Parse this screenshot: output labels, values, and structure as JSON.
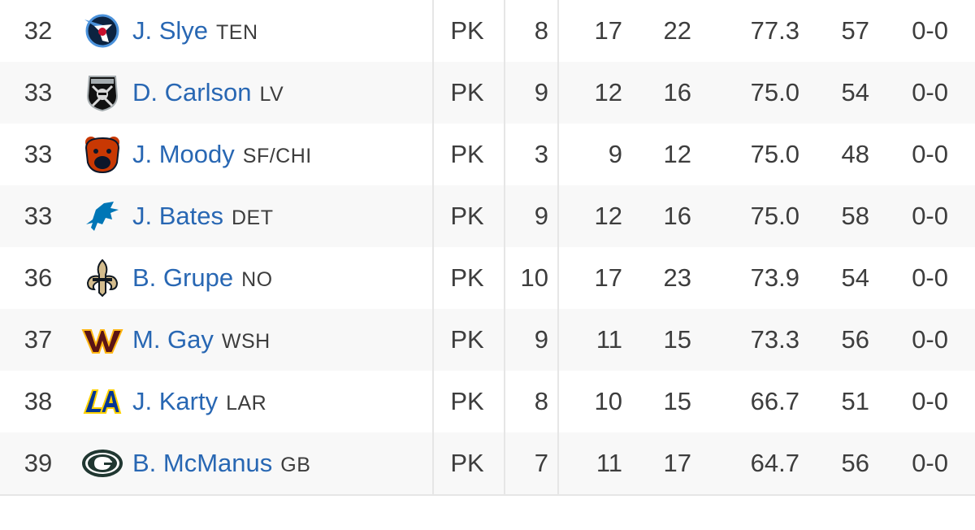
{
  "rows": [
    {
      "rank": "32",
      "player": "J. Slye",
      "team": "TEN",
      "logo": "titans-logo-icon",
      "pos": "PK",
      "gp": "8",
      "fg": "17",
      "fga": "22",
      "pct": "77.3",
      "lng": "57",
      "xp": "0-0"
    },
    {
      "rank": "33",
      "player": "D. Carlson",
      "team": "LV",
      "logo": "raiders-logo-icon",
      "pos": "PK",
      "gp": "9",
      "fg": "12",
      "fga": "16",
      "pct": "75.0",
      "lng": "54",
      "xp": "0-0"
    },
    {
      "rank": "33",
      "player": "J. Moody",
      "team": "SF/CHI",
      "logo": "bears-logo-icon",
      "pos": "PK",
      "gp": "3",
      "fg": "9",
      "fga": "12",
      "pct": "75.0",
      "lng": "48",
      "xp": "0-0"
    },
    {
      "rank": "33",
      "player": "J. Bates",
      "team": "DET",
      "logo": "lions-logo-icon",
      "pos": "PK",
      "gp": "9",
      "fg": "12",
      "fga": "16",
      "pct": "75.0",
      "lng": "58",
      "xp": "0-0"
    },
    {
      "rank": "36",
      "player": "B. Grupe",
      "team": "NO",
      "logo": "saints-logo-icon",
      "pos": "PK",
      "gp": "10",
      "fg": "17",
      "fga": "23",
      "pct": "73.9",
      "lng": "54",
      "xp": "0-0"
    },
    {
      "rank": "37",
      "player": "M. Gay",
      "team": "WSH",
      "logo": "commanders-logo-icon",
      "pos": "PK",
      "gp": "9",
      "fg": "11",
      "fga": "15",
      "pct": "73.3",
      "lng": "56",
      "xp": "0-0"
    },
    {
      "rank": "38",
      "player": "J. Karty",
      "team": "LAR",
      "logo": "rams-logo-icon",
      "pos": "PK",
      "gp": "8",
      "fg": "10",
      "fga": "15",
      "pct": "66.7",
      "lng": "51",
      "xp": "0-0"
    },
    {
      "rank": "39",
      "player": "B. McManus",
      "team": "GB",
      "logo": "packers-logo-icon",
      "pos": "PK",
      "gp": "7",
      "fg": "11",
      "fga": "17",
      "pct": "64.7",
      "lng": "56",
      "xp": "0-0"
    }
  ],
  "colors": {
    "link": "#2867b3",
    "text": "#3d3d3d",
    "row_alt": "#f8f8f8",
    "highlight_column": "#e9f0fa",
    "divider": "#e6e6e6"
  }
}
